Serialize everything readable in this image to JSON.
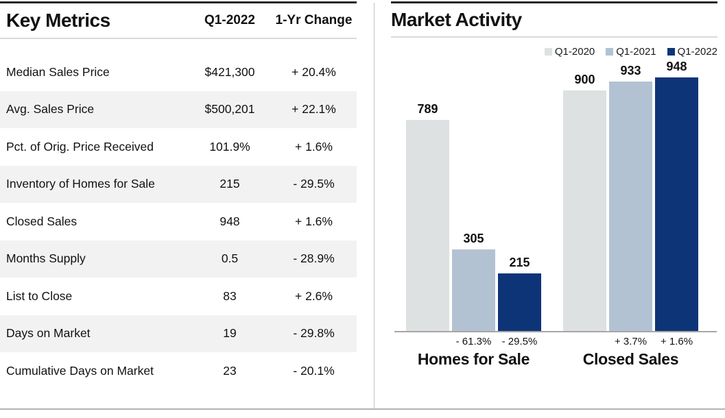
{
  "left_panel": {
    "title": "Key Metrics",
    "columns": {
      "period": "Q1-2022",
      "change": "1-Yr Change"
    },
    "rows": [
      {
        "label": "Median Sales Price",
        "value": "$421,300",
        "change": "+ 20.4%"
      },
      {
        "label": "Avg. Sales Price",
        "value": "$500,201",
        "change": "+ 22.1%"
      },
      {
        "label": "Pct. of Orig. Price Received",
        "value": "101.9%",
        "change": "+ 1.6%"
      },
      {
        "label": "Inventory of Homes for Sale",
        "value": "215",
        "change": "- 29.5%"
      },
      {
        "label": "Closed Sales",
        "value": "948",
        "change": "+ 1.6%"
      },
      {
        "label": "Months Supply",
        "value": "0.5",
        "change": "- 28.9%"
      },
      {
        "label": "List to Close",
        "value": "83",
        "change": "+ 2.6%"
      },
      {
        "label": "Days on Market",
        "value": "19",
        "change": "- 29.8%"
      },
      {
        "label": "Cumulative Days on Market",
        "value": "23",
        "change": "- 20.1%"
      }
    ]
  },
  "right_panel": {
    "title": "Market Activity"
  },
  "chart_data": {
    "type": "bar",
    "title": "Market Activity",
    "categories": [
      "Homes for Sale",
      "Closed Sales"
    ],
    "series": [
      {
        "name": "Q1-2020",
        "color": "#dee1e1",
        "values": [
          789,
          900
        ]
      },
      {
        "name": "Q1-2021",
        "color": "#b3c2d3",
        "values": [
          305,
          933
        ]
      },
      {
        "name": "Q1-2022",
        "color": "#0e3478",
        "values": [
          215,
          948
        ]
      }
    ],
    "change_labels": [
      [
        "",
        "- 61.3%",
        "- 29.5%"
      ],
      [
        "",
        "+ 3.7%",
        "+ 1.6%"
      ]
    ],
    "ylim": [
      0,
      948
    ],
    "grid": false,
    "legend_position": "top-right",
    "value_labels": true
  }
}
